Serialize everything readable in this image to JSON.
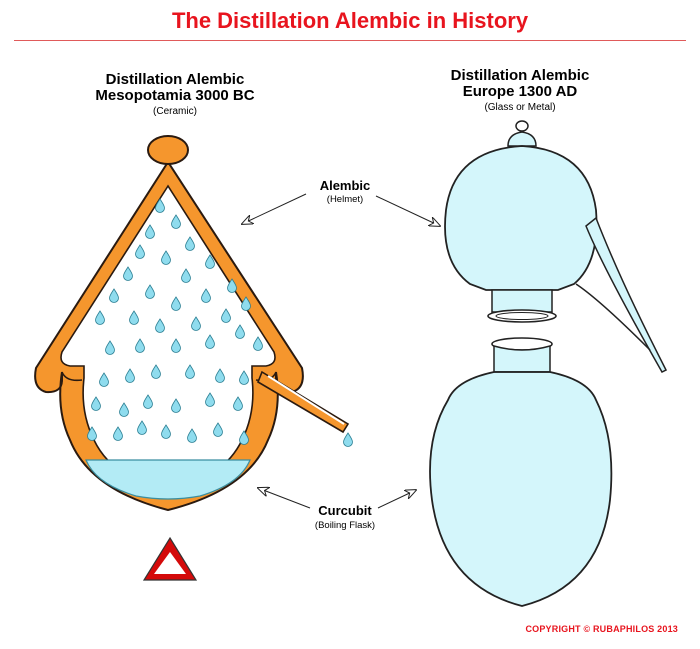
{
  "title": "The Distillation Alembic in History",
  "colors": {
    "title": "#e8141e",
    "rule": "#e05a5a",
    "ceramic": "#f5962d",
    "ceramic_outline": "#2a1a10",
    "liquid": "#b3ebf5",
    "drop": "#8fdcee",
    "glass": "#d4f6fb",
    "warning_red": "#d40a0a"
  },
  "left": {
    "heading_line1": "Distillation Alembic",
    "heading_line2": "Mesopotamia 3000 BC",
    "material": "(Ceramic)"
  },
  "right": {
    "heading_line1": "Distillation Alembic",
    "heading_line2": "Europe 1300 AD",
    "material": "(Glass or Metal)"
  },
  "labels": {
    "alembic": "Alembic",
    "alembic_sub": "(Helmet)",
    "curcubit": "Curcubit",
    "curcubit_sub": "(Boiling Flask)"
  },
  "icons": {
    "heat": "warning-triangle-icon",
    "drop": "water-drop-icon"
  },
  "copyright": "COPYRIGHT © RUBAPHILOS 2013"
}
